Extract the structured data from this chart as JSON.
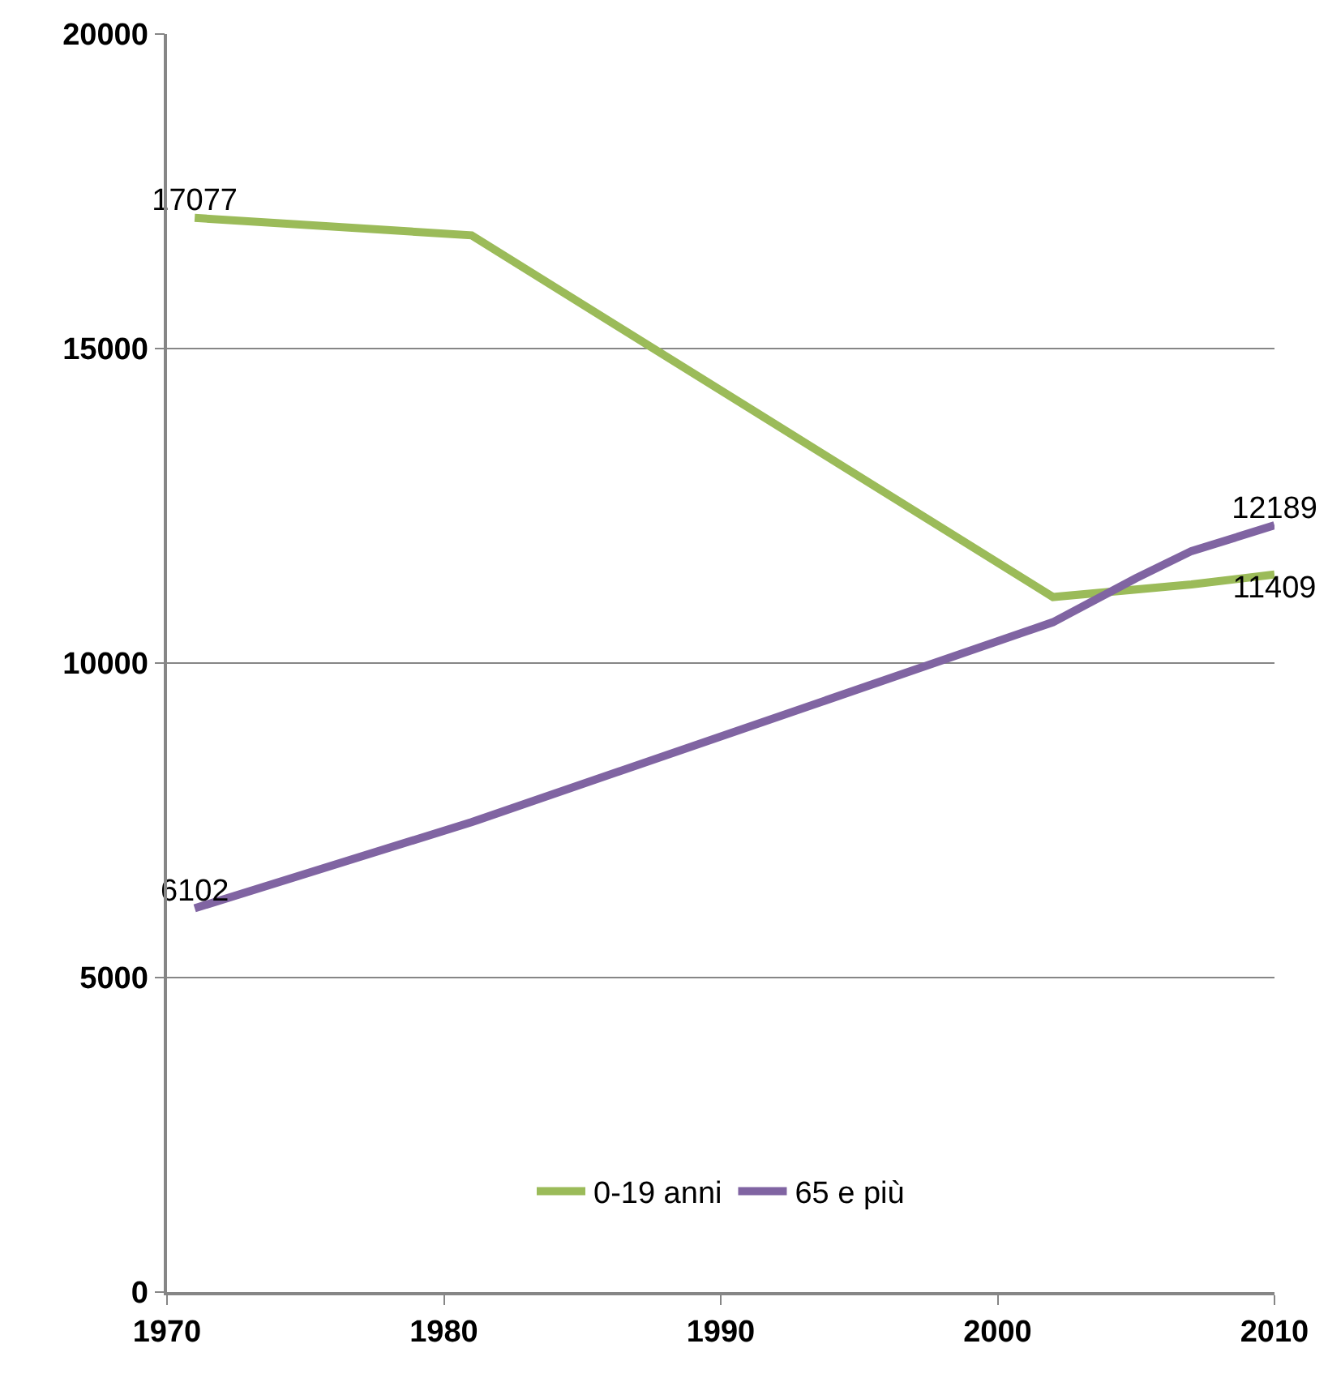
{
  "chart_data": {
    "type": "line",
    "xlim": [
      1970,
      2010
    ],
    "xticks": [
      1970,
      1980,
      1990,
      2000,
      2010
    ],
    "ylim": [
      0,
      20000
    ],
    "yticks": [
      0,
      5000,
      10000,
      15000,
      20000
    ],
    "grid": "y",
    "legend": "bottom",
    "marker": "none",
    "line_style": "solid",
    "series": [
      {
        "name": "0-19 anni",
        "color": "#9bbb59",
        "x": [
          1971,
          1981,
          2002,
          2007,
          2010
        ],
        "values": [
          17077,
          16800,
          11050,
          11250,
          11409
        ],
        "value_labels": [
          "17077",
          null,
          null,
          null,
          "11409"
        ]
      },
      {
        "name": "65 e più",
        "color": "#8064a2",
        "x": [
          1971,
          1981,
          2002,
          2005,
          2007,
          2010
        ],
        "values": [
          6102,
          7470,
          10650,
          11350,
          11780,
          12189
        ],
        "value_labels": [
          "6102",
          null,
          null,
          null,
          null,
          "12189"
        ]
      }
    ]
  }
}
